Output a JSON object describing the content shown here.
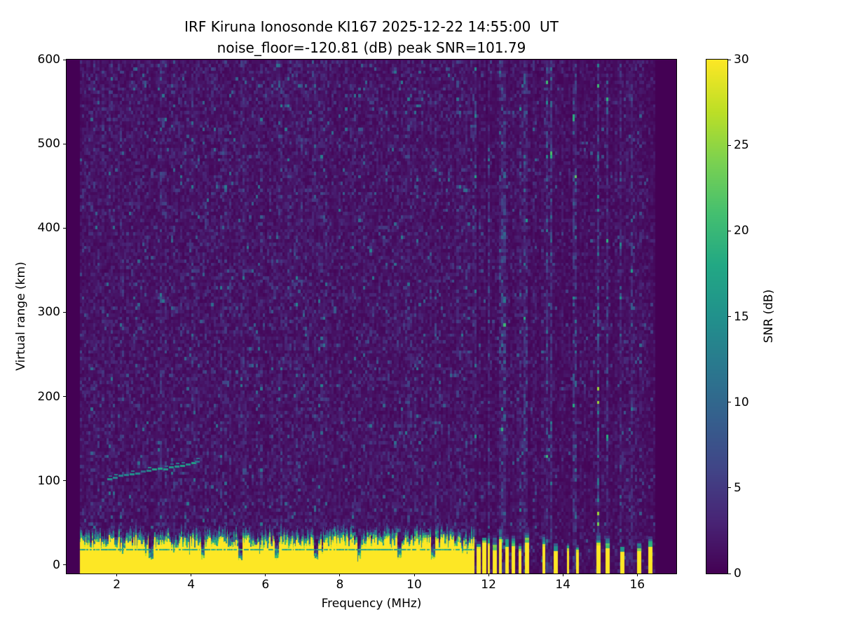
{
  "title": {
    "line1": "IRF Kiruna Ionosonde KI167 2025-12-22 14:55:00  UT",
    "line2": "noise_floor=-120.81 (dB) peak SNR=101.79"
  },
  "chart_data": {
    "type": "heatmap",
    "title": "IRF Kiruna Ionosonde KI167 2025-12-22 14:55:00  UT\nnoise_floor=-120.81 (dB) peak SNR=101.79",
    "xlabel": "Frequency (MHz)",
    "ylabel": "Virtual range (km)",
    "zlabel": "SNR (dB)",
    "xlim": [
      0.65,
      17.05
    ],
    "ylim": [
      -10,
      600
    ],
    "x_ticks": [
      2,
      4,
      6,
      8,
      10,
      12,
      14,
      16
    ],
    "y_ticks": [
      0,
      100,
      200,
      300,
      400,
      500,
      600
    ],
    "grid": false,
    "colorbar": {
      "label": "SNR (dB)",
      "ticks": [
        0,
        5,
        10,
        15,
        20,
        25,
        30
      ],
      "range": [
        0,
        30
      ],
      "colormap": "viridis",
      "position": "right"
    },
    "viridis_stops": [
      "#440154",
      "#482475",
      "#414487",
      "#355f8d",
      "#2a788e",
      "#21918c",
      "#22a884",
      "#44bf70",
      "#7ad151",
      "#bddf26",
      "#fde725"
    ],
    "background_color": "#440154",
    "seed": 20251222,
    "features": {
      "data_freq_range_mhz": [
        1.0,
        16.45
      ],
      "noise_background_snr_db": 1.5,
      "speckle_max_snr_db": 8,
      "ground_clutter": {
        "freq_range_mhz": [
          1.0,
          11.6
        ],
        "range_top_km": 32,
        "fringe_top_km": 50,
        "snr_db": 30
      },
      "clutter_notches_mhz": [
        2.9,
        4.3,
        5.3,
        6.3,
        7.35,
        8.5,
        9.6,
        10.5
      ],
      "clutter_stripes_mhz": [
        11.68,
        11.82,
        11.97,
        12.12,
        12.28,
        12.45,
        12.62,
        12.8,
        12.98,
        13.45,
        13.75,
        14.1,
        14.35,
        14.9,
        15.15,
        15.55,
        16.0,
        16.3
      ],
      "rfi_striation_band_mhz": [
        11.6,
        16.45
      ],
      "echo_trace_points_mhz_km": [
        [
          1.75,
          103
        ],
        [
          1.9,
          105
        ],
        [
          2.05,
          107
        ],
        [
          2.2,
          108
        ],
        [
          2.35,
          109
        ],
        [
          2.5,
          110
        ],
        [
          2.65,
          112
        ],
        [
          2.8,
          113
        ],
        [
          2.95,
          115
        ],
        [
          3.1,
          116
        ],
        [
          3.25,
          115
        ],
        [
          3.4,
          117
        ],
        [
          3.55,
          118
        ],
        [
          3.7,
          119
        ],
        [
          3.85,
          121
        ],
        [
          4.0,
          122
        ],
        [
          4.1,
          124
        ]
      ],
      "echo_trace_snr_db": 14
    }
  }
}
